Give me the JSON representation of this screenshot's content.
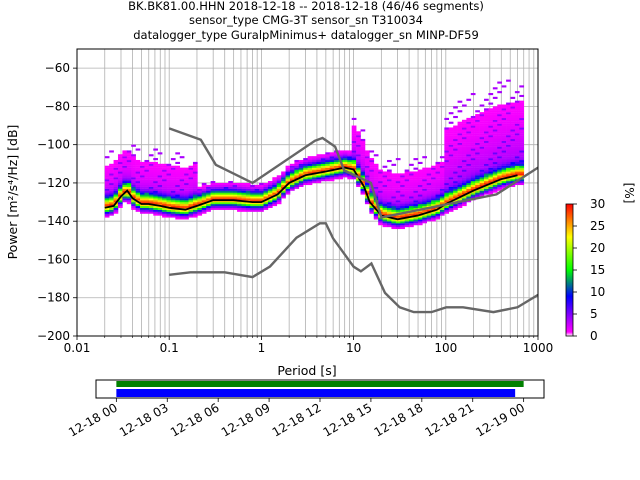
{
  "header": {
    "line1": "BK.BK81.00.HHN   2018-12-18 -- 2018-12-18  (46/46 segments)",
    "line2": "sensor_type CMG-3T sensor_sn T310034",
    "line3": "datalogger_type GuralpMinimus+ datalogger_sn MINP-DF59"
  },
  "chart_data": [
    {
      "type": "heatmap",
      "xlabel": "Period [s]",
      "ylabel": "Power [m²/s⁴/Hz] [dB]",
      "x_scale": "log",
      "xlim": [
        0.01,
        1000
      ],
      "ylim": [
        -200,
        -50
      ],
      "x_ticks": [
        "0.01",
        "0.1",
        "1",
        "10",
        "100",
        "1000"
      ],
      "y_ticks": [
        "-200",
        "-180",
        "-160",
        "-140",
        "-120",
        "-100",
        "-80",
        "-60"
      ],
      "grid": true,
      "colorbar": {
        "label": "[%]",
        "range": [
          0,
          30
        ],
        "ticks": [
          "0",
          "5",
          "10",
          "15",
          "20",
          "25",
          "30"
        ],
        "stops": [
          "#ffffff",
          "#ff00ff",
          "#0000ff",
          "#00ff00",
          "#ffff00",
          "#ff0000"
        ]
      },
      "series": [
        {
          "name": "",
          "role": "mode",
          "color": "#000000",
          "x": [
            0.02,
            0.025,
            0.03,
            0.035,
            0.04,
            0.05,
            0.06,
            0.08,
            0.1,
            0.15,
            0.2,
            0.3,
            0.5,
            0.8,
            1.0,
            1.5,
            2,
            3,
            5,
            8,
            10,
            13,
            15,
            20,
            30,
            50,
            80,
            100,
            200,
            400,
            600
          ],
          "y": [
            -133,
            -132,
            -127,
            -124,
            -128,
            -131,
            -131,
            -132,
            -133,
            -134,
            -132,
            -129,
            -129,
            -130,
            -130,
            -126,
            -120,
            -116,
            -114,
            -112,
            -113,
            -122,
            -130,
            -137,
            -139,
            -137,
            -134,
            -131,
            -124,
            -118,
            -116
          ]
        },
        {
          "name": "",
          "role": "noise-model-high",
          "color": "#666666",
          "x": [
            0.1,
            0.22,
            0.32,
            0.8,
            3.8,
            4.6,
            6.3,
            7.9,
            15.4,
            20,
            354.8,
            1000
          ],
          "y": [
            -91.5,
            -97.4,
            -110.5,
            -120,
            -98,
            -96.5,
            -101,
            -113.5,
            -120,
            -138,
            -126,
            -112
          ]
        },
        {
          "name": "",
          "role": "noise-model-low",
          "color": "#666666",
          "x": [
            0.1,
            0.17,
            0.4,
            0.8,
            1.24,
            2.4,
            4.3,
            5.0,
            6.0,
            10.0,
            12.0,
            15.6,
            21.9,
            31.6,
            45.0,
            70.0,
            101.0,
            154.0,
            328.0,
            600.0,
            1000.0
          ],
          "y": [
            -168,
            -166.7,
            -166.7,
            -169.2,
            -163.7,
            -148.6,
            -141.1,
            -141.1,
            -149,
            -163.8,
            -166.2,
            -162.1,
            -177.5,
            -185,
            -187.5,
            -187.5,
            -185,
            -185,
            -187.5,
            -185,
            -178.5
          ]
        }
      ]
    },
    {
      "type": "bar",
      "x_ticks": [
        "12-18 00",
        "12-18 03",
        "12-18 06",
        "12-18 09",
        "12-18 12",
        "12-18 15",
        "12-18 18",
        "12-18 21",
        "12-19 00"
      ],
      "xlim_hours": [
        -1.2,
        25.2
      ],
      "series": [
        {
          "name": "",
          "role": "data-coverage",
          "color": "#008000",
          "start_hour": 0,
          "end_hour": 24.0
        },
        {
          "name": "",
          "role": "used-coverage",
          "color": "#0000ff",
          "start_hour": 0,
          "end_hour": 23.5
        }
      ]
    }
  ]
}
